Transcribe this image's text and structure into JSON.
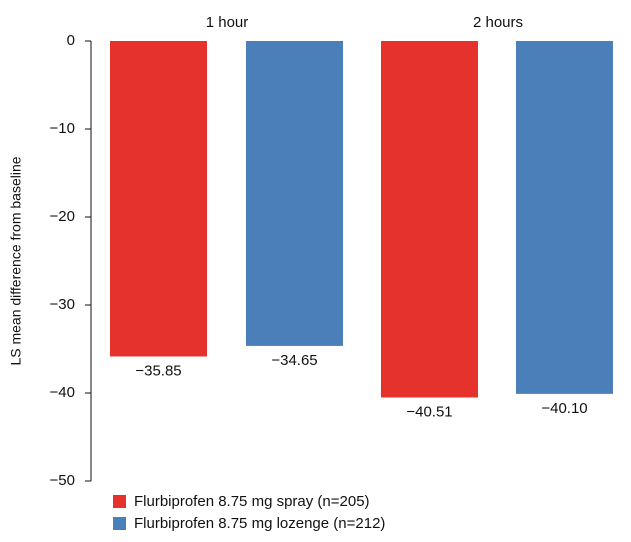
{
  "chart_data": {
    "type": "bar",
    "categories": [
      "1 hour",
      "2 hours"
    ],
    "series": [
      {
        "name": "Flurbiprofen 8.75 mg spray (n=205)",
        "values": [
          -35.85,
          -40.51
        ],
        "labels": [
          "−35.85",
          "−40.51"
        ],
        "color": "#e5322d"
      },
      {
        "name": "Flurbiprofen 8.75 mg lozenge (n=212)",
        "values": [
          -34.65,
          -40.1
        ],
        "labels": [
          "−34.65",
          "−40.10"
        ],
        "color": "#4a7fba"
      }
    ],
    "ylabel": "LS mean difference from baseline",
    "xlabel": "",
    "ylim": [
      -50,
      0
    ],
    "yticks": [
      0,
      -10,
      -20,
      -30,
      -40,
      -50
    ],
    "ytick_labels": [
      "0",
      "−10",
      "−20",
      "−30",
      "−40",
      "−50"
    ],
    "category_position": "top",
    "legend_position": "bottom-left",
    "grid": false
  }
}
